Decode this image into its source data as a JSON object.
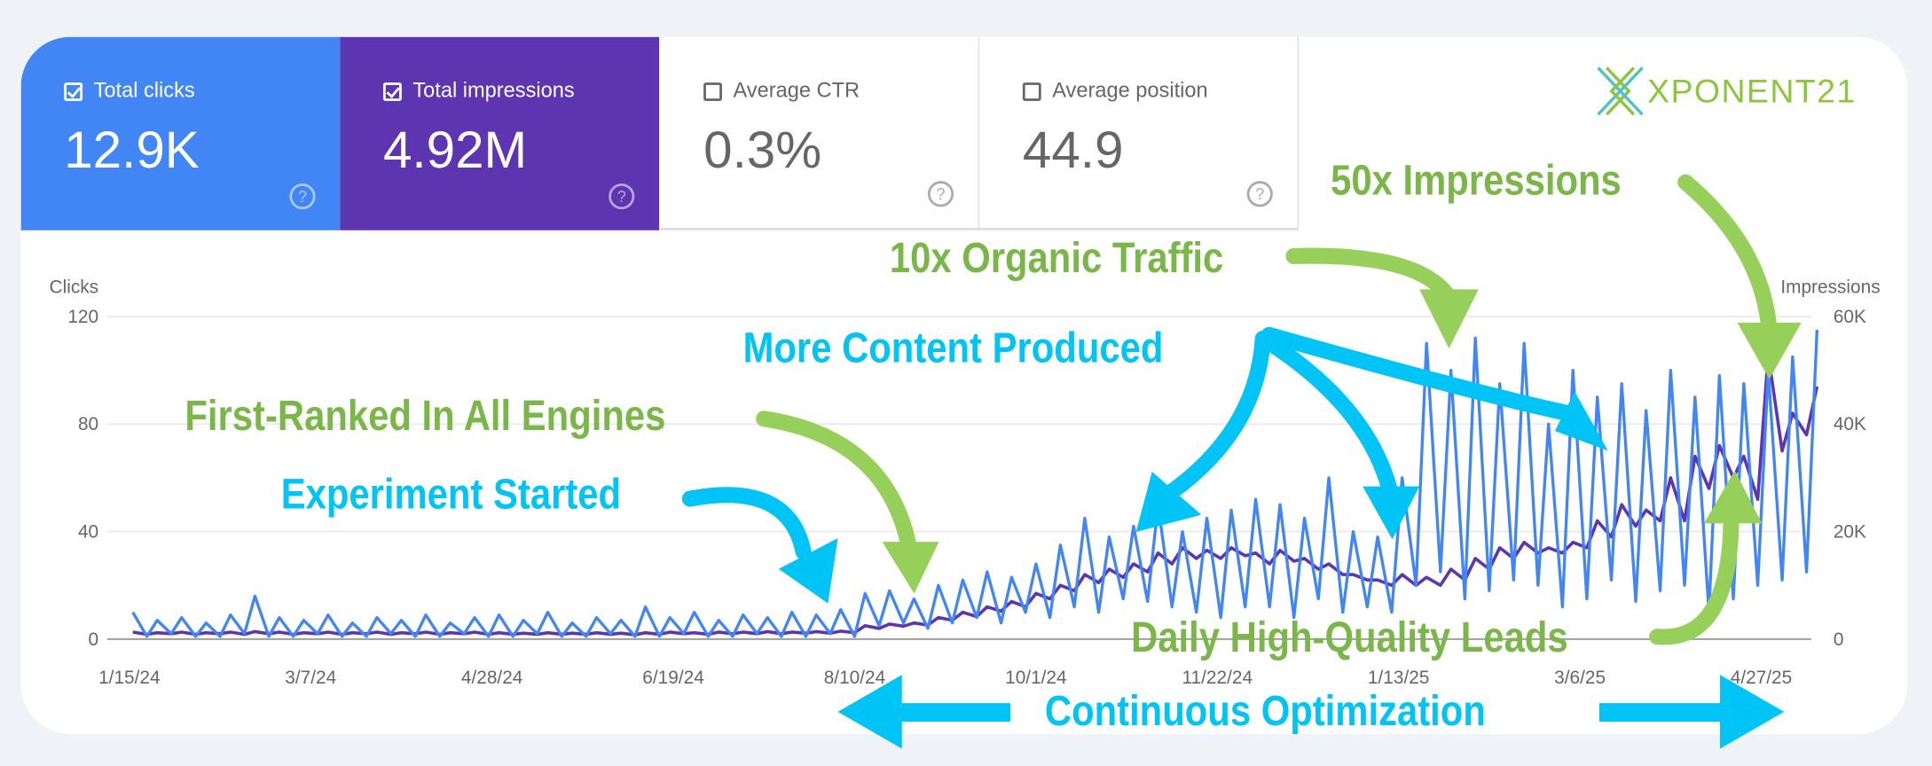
{
  "metrics": [
    {
      "label": "Total clicks",
      "value": "12.9K",
      "checked": true,
      "color": "#4285f4"
    },
    {
      "label": "Total impressions",
      "value": "4.92M",
      "checked": true,
      "color": "#5e35b1"
    },
    {
      "label": "Average CTR",
      "value": "0.3%",
      "checked": false
    },
    {
      "label": "Average position",
      "value": "44.9",
      "checked": false
    }
  ],
  "help_icon": "?",
  "logo": {
    "text": "XPONENT21",
    "mark": "x-chevron-logo",
    "color": "#8cc63f"
  },
  "annotations": {
    "impressions": "50x Impressions",
    "traffic": "10x Organic Traffic",
    "content": "More Content Produced",
    "ranked": "First-Ranked In All Engines",
    "experiment": "Experiment Started",
    "leads": "Daily High-Quality Leads",
    "optimization": "Continuous Optimization",
    "green": "#92d35a",
    "cyan": "#00c4f5"
  },
  "chart_data": {
    "type": "line",
    "left_axis": {
      "label": "Clicks",
      "ylim": [
        0,
        120
      ],
      "ticks": [
        "0",
        "40",
        "80",
        "120"
      ]
    },
    "right_axis": {
      "label": "Impressions",
      "ylim": [
        0,
        60000
      ],
      "ticks": [
        "0",
        "20K",
        "40K",
        "60K"
      ]
    },
    "x_ticks": [
      "1/15/24",
      "3/7/24",
      "4/28/24",
      "6/19/24",
      "8/10/24",
      "10/1/24",
      "11/22/24",
      "1/13/25",
      "3/6/25",
      "4/27/25"
    ],
    "grid": true,
    "x": [
      "1/16/24",
      "1/20/24",
      "1/23/24",
      "1/27/24",
      "1/30/24",
      "2/3/24",
      "2/6/24",
      "2/10/24",
      "2/13/24",
      "2/17/24",
      "2/20/24",
      "2/24/24",
      "2/27/24",
      "3/2/24",
      "3/5/24",
      "3/9/24",
      "3/12/24",
      "3/16/24",
      "3/19/24",
      "3/23/24",
      "3/26/24",
      "3/30/24",
      "4/2/24",
      "4/6/24",
      "4/9/24",
      "4/13/24",
      "4/16/24",
      "4/20/24",
      "4/23/24",
      "4/27/24",
      "4/30/24",
      "5/4/24",
      "5/7/24",
      "5/11/24",
      "5/14/24",
      "5/18/24",
      "5/21/24",
      "5/25/24",
      "5/28/24",
      "6/1/24",
      "6/4/24",
      "6/8/24",
      "6/11/24",
      "6/15/24",
      "6/18/24",
      "6/22/24",
      "6/25/24",
      "6/29/24",
      "7/2/24",
      "7/6/24",
      "7/9/24",
      "7/13/24",
      "7/16/24",
      "7/20/24",
      "7/23/24",
      "7/27/24",
      "7/30/24",
      "8/3/24",
      "8/6/24",
      "8/10/24",
      "8/13/24",
      "8/17/24",
      "8/20/24",
      "8/24/24",
      "8/27/24",
      "8/31/24",
      "9/3/24",
      "9/7/24",
      "9/10/24",
      "9/14/24",
      "9/17/24",
      "9/21/24",
      "9/24/24",
      "9/28/24",
      "10/1/24",
      "10/5/24",
      "10/8/24",
      "10/12/24",
      "10/15/24",
      "10/19/24",
      "10/22/24",
      "10/26/24",
      "10/29/24",
      "11/2/24",
      "11/5/24",
      "11/9/24",
      "11/12/24",
      "11/16/24",
      "11/19/24",
      "11/23/24",
      "11/26/24",
      "11/30/24",
      "12/3/24",
      "12/7/24",
      "12/10/24",
      "12/14/24",
      "12/17/24",
      "12/21/24",
      "12/24/24",
      "12/28/24",
      "12/31/24",
      "1/4/25",
      "1/7/25",
      "1/11/25",
      "1/14/25",
      "1/18/25",
      "1/21/25",
      "1/25/25",
      "1/28/25",
      "2/1/25",
      "2/4/25",
      "2/8/25",
      "2/11/25",
      "2/15/25",
      "2/18/25",
      "2/22/25",
      "2/25/25",
      "3/1/25",
      "3/4/25",
      "3/8/25",
      "3/11/25",
      "3/15/25",
      "3/18/25",
      "3/22/25",
      "3/25/25",
      "3/29/25",
      "4/1/25",
      "4/5/25",
      "4/8/25",
      "4/12/25",
      "4/15/25",
      "4/19/25",
      "4/22/25",
      "4/26/25",
      "4/29/25",
      "5/3/25",
      "5/6/25",
      "5/10/25",
      "5/13/25"
    ],
    "series": [
      {
        "name": "Clicks",
        "axis": "left",
        "color": "#4285f4",
        "values": [
          10,
          1,
          7,
          2,
          8,
          1,
          6,
          1,
          9,
          2,
          16,
          1,
          8,
          1,
          7,
          2,
          9,
          1,
          6,
          1,
          8,
          2,
          7,
          1,
          9,
          1,
          6,
          2,
          8,
          1,
          9,
          1,
          7,
          2,
          10,
          1,
          6,
          1,
          8,
          2,
          7,
          1,
          12,
          1,
          8,
          2,
          10,
          1,
          7,
          1,
          9,
          2,
          8,
          1,
          10,
          1,
          9,
          2,
          11,
          1,
          17,
          5,
          18,
          6,
          15,
          4,
          20,
          6,
          22,
          8,
          25,
          6,
          23,
          10,
          28,
          8,
          35,
          12,
          45,
          10,
          38,
          15,
          42,
          14,
          50,
          12,
          40,
          10,
          45,
          8,
          48,
          12,
          52,
          12,
          50,
          8,
          45,
          15,
          60,
          10,
          40,
          12,
          38,
          10,
          60,
          20,
          110,
          25,
          100,
          15,
          112,
          18,
          95,
          22,
          110,
          20,
          80,
          12,
          100,
          15,
          90,
          22,
          95,
          14,
          85,
          18,
          100,
          20,
          90,
          10,
          98,
          15,
          95,
          20,
          100,
          22,
          105,
          25,
          115
        ]
      },
      {
        "name": "Impressions",
        "axis": "right",
        "color": "#5e35b1",
        "values": [
          1300,
          900,
          1200,
          1000,
          1300,
          900,
          1200,
          1000,
          1300,
          900,
          1400,
          1000,
          1300,
          900,
          1200,
          1000,
          1300,
          900,
          1200,
          1000,
          1300,
          900,
          1200,
          1000,
          1300,
          900,
          1200,
          1000,
          1300,
          900,
          1200,
          900,
          1100,
          900,
          1200,
          900,
          1100,
          900,
          1200,
          900,
          1100,
          800,
          1200,
          900,
          1300,
          1000,
          1200,
          900,
          1300,
          1000,
          1300,
          1000,
          1400,
          1000,
          1300,
          1100,
          1400,
          1100,
          1500,
          1200,
          2500,
          2000,
          2800,
          2400,
          3000,
          2600,
          4000,
          3500,
          5000,
          4200,
          6000,
          5200,
          7000,
          6000,
          8500,
          7500,
          10000,
          9000,
          12000,
          10500,
          13000,
          11500,
          14000,
          12500,
          16000,
          14000,
          17000,
          15000,
          16500,
          15000,
          17000,
          15500,
          16000,
          14000,
          16500,
          14500,
          15000,
          13000,
          14000,
          12000,
          12000,
          11000,
          11000,
          10000,
          12000,
          10000,
          11500,
          10000,
          13000,
          11000,
          15000,
          13000,
          17000,
          15000,
          18000,
          16000,
          17000,
          16000,
          18000,
          17000,
          22000,
          19000,
          25000,
          21000,
          24000,
          22000,
          30000,
          22000,
          34000,
          28000,
          36000,
          30000,
          34000,
          26000,
          53000,
          35000,
          42000,
          38000,
          47000
        ]
      }
    ]
  }
}
